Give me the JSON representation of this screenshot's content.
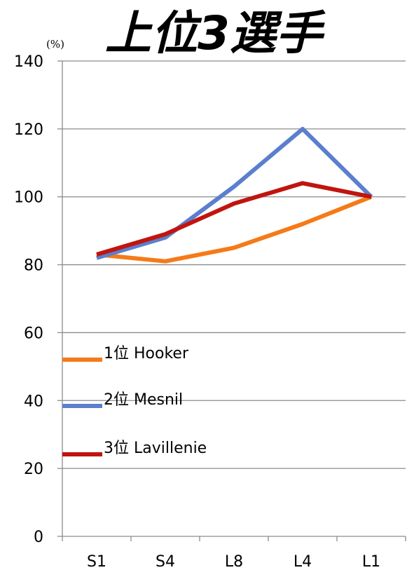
{
  "chart_data": {
    "type": "line",
    "title": "上位3選手",
    "unit": "(%)",
    "xlabel": "",
    "ylabel": "",
    "categories": [
      "S1",
      "S4",
      "L8",
      "L4",
      "L1"
    ],
    "ylim": [
      0,
      140
    ],
    "yticks": [
      "0",
      "20",
      "40",
      "60",
      "80",
      "100",
      "120",
      "140"
    ],
    "grid": "horizontal",
    "legend_position": "inside-left",
    "series": [
      {
        "name": "1位 Hooker",
        "color": "#f57a18",
        "values": [
          83,
          81,
          85,
          92,
          100
        ]
      },
      {
        "name": "2位 Mesnil",
        "color": "#5b7fce",
        "values": [
          82,
          88,
          103,
          120,
          100
        ]
      },
      {
        "name": "3位 Lavillenie",
        "color": "#c0150f",
        "values": [
          83,
          89,
          98,
          104,
          100
        ]
      }
    ]
  }
}
